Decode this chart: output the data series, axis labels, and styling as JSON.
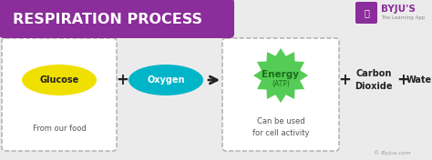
{
  "bg_color": "#ebebeb",
  "title": "RESPIRATION PROCESS",
  "title_bg": "#8b2d9a",
  "title_color": "#ffffff",
  "glucose_color": "#f0e000",
  "glucose_text": "Glucose",
  "glucose_sub": "From our food",
  "oxygen_color": "#00b5c8",
  "oxygen_text": "Oxygen",
  "energy_color": "#55cc55",
  "energy_text": "Energy",
  "energy_sub": "(ATP)",
  "energy_sub2": "Can be used\nfor cell activity",
  "co2_text": "Carbon\nDioxide",
  "water_text": "Water",
  "byju_text": "© Byjus.com",
  "arrow_color": "#222222",
  "dashed_box_color": "#aaaaaa",
  "text_dark": "#222222",
  "energy_text_color": "#1a6e1a"
}
